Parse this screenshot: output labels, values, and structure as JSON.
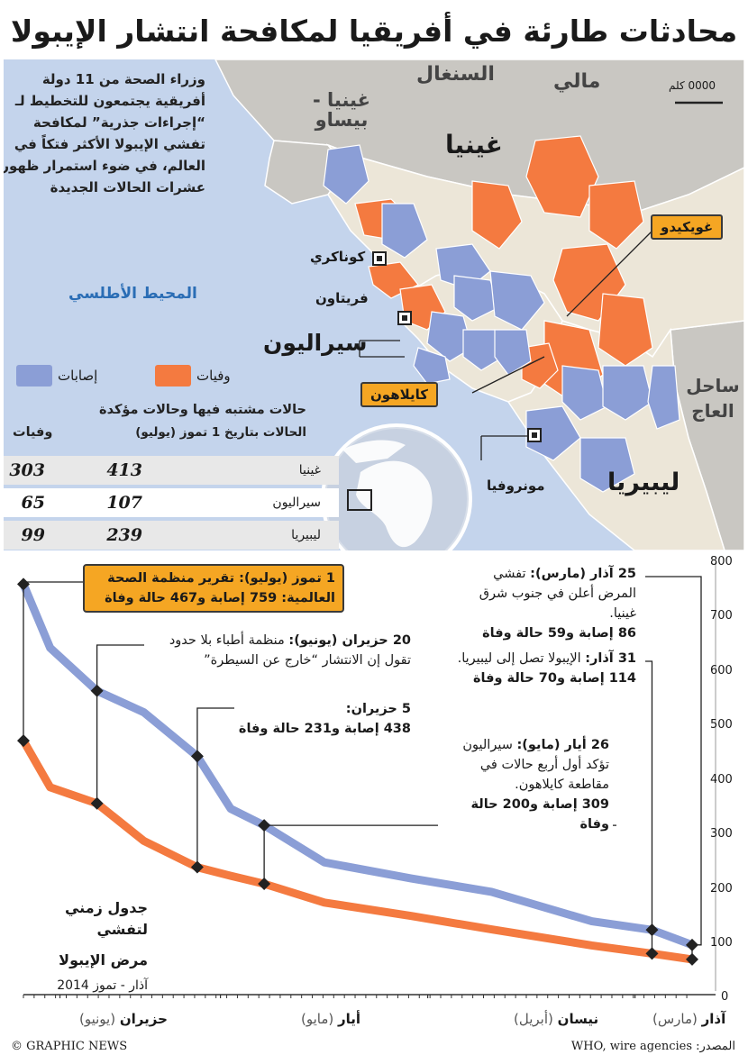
{
  "title": "محادثات طارئة في أفريقيا لمكافحة انتشار الإيبولا",
  "intro": "وزراء الصحة من 11 دولة أفريقية يجتمعون للتخطيط لـ “إجراءات جذرية” لمكافحة تفشي الإيبولا الأكثر فتكاً في العالم، في ضوء استمرار ظهور عشرات الحالات الجديدة",
  "map": {
    "scale": "0000 كلم",
    "labels": {
      "senegal": "السنغال",
      "mali": "مالي",
      "guinea_bissau": "غينيا - بيساو",
      "guinea": "غينيا",
      "conakry": "كوناكري",
      "freetown": "فريتاون",
      "ocean": "المحيط الأطلسي",
      "sierra_leone": "سيراليون",
      "ivory_coast": "ساحل العاج",
      "liberia": "ليبيريا",
      "monrovia": "مونروفيا"
    },
    "callouts": {
      "gueckedou": "غويكيدو",
      "kailahun": "كايلاهون"
    },
    "colors": {
      "water": "#c4d4ec",
      "land": "#ece6d8",
      "neighbor": "#c9c7c2",
      "cases": "#8b9ed6",
      "deaths": "#f47a40"
    }
  },
  "legend": {
    "deaths": "وفيات",
    "cases": "إصابات"
  },
  "table": {
    "title": "حالات مشتبه فيها وحالات مؤكدة",
    "subtitle": "الحالات بتاريخ 1 تموز (يوليو)",
    "deaths_header": "وفيات",
    "rows": [
      {
        "country": "غينيا",
        "cases": "413",
        "deaths": "303"
      },
      {
        "country": "سيراليون",
        "cases": "107",
        "deaths": "65"
      },
      {
        "country": "ليبيريا",
        "cases": "239",
        "deaths": "99"
      }
    ]
  },
  "chart": {
    "title_line1": "جدول زمني لتفشي",
    "title_line2": "مرض الإيبولا",
    "subtitle": "آذار - تموز 2014",
    "yticks": [
      "800",
      "700",
      "600",
      "500",
      "400",
      "300",
      "200",
      "100",
      "0"
    ],
    "months": [
      {
        "name": "آذار",
        "en": "(مارس)"
      },
      {
        "name": "نيسان",
        "en": "(أبريل)"
      },
      {
        "name": "أيار",
        "en": "(مايو)"
      },
      {
        "name": "حزيران",
        "en": "(يونيو)"
      }
    ],
    "annotations": {
      "mar25": {
        "head": "25 آذار (مارس):",
        "body": " تفشي المرض أعلن في جنوب شرق غينيا.",
        "figure": "86 إصابة و59 حالة وفاة"
      },
      "mar31": {
        "head": "31 آذار:",
        "body": " الإيبولا تصل إلى ليبيريا.",
        "figure": "114 إصابة و70 حالة وفاة"
      },
      "may26": {
        "head": "26 أيار (مايو):",
        "body": " سيراليون تؤكد أول أربع حالات في مقاطعة كايلاهون.",
        "figure": "309 إصابة و200 حالة وفاة"
      },
      "jun5": {
        "head": "5 حزيران:",
        "figure": "438 إصابة و231 حالة وفاة"
      },
      "jun20": {
        "head": "20 حزيران (يونيو):",
        "body": " منظمة أطباء بلا حدود تقول إن الانتشار “خارج عن السيطرة”"
      },
      "jul1": {
        "head": "1 تموز (يوليو):",
        "body": " تقرير منظمة الصحة العالمية: 759 إصابة و467 حالة وفاة"
      }
    }
  },
  "chart_data": {
    "type": "line",
    "x_unit": "days before 1 July 2014",
    "ylim": [
      0,
      800
    ],
    "series": [
      {
        "name": "إصابات",
        "points": [
          [
            100,
            86
          ],
          [
            94,
            114
          ],
          [
            85,
            130
          ],
          [
            70,
            185
          ],
          [
            58,
            210
          ],
          [
            45,
            240
          ],
          [
            36,
            309
          ],
          [
            31,
            340
          ],
          [
            26,
            438
          ],
          [
            18,
            520
          ],
          [
            11,
            560
          ],
          [
            4,
            640
          ],
          [
            0,
            759
          ]
        ]
      },
      {
        "name": "وفيات",
        "points": [
          [
            100,
            59
          ],
          [
            94,
            70
          ],
          [
            85,
            85
          ],
          [
            70,
            115
          ],
          [
            58,
            140
          ],
          [
            45,
            165
          ],
          [
            36,
            200
          ],
          [
            31,
            215
          ],
          [
            26,
            231
          ],
          [
            18,
            280
          ],
          [
            11,
            350
          ],
          [
            4,
            380
          ],
          [
            0,
            467
          ]
        ]
      }
    ],
    "markers": [
      {
        "label": "25 آذار",
        "cases": 86,
        "deaths": 59
      },
      {
        "label": "31 آذار",
        "cases": 114,
        "deaths": 70
      },
      {
        "label": "26 أيار",
        "cases": 309,
        "deaths": 200
      },
      {
        "label": "5 حزيران",
        "cases": 438,
        "deaths": 231
      },
      {
        "label": "20 حزيران",
        "cases": 560,
        "deaths": 350
      },
      {
        "label": "1 تموز",
        "cases": 759,
        "deaths": 467
      }
    ]
  },
  "footer": {
    "credit": "© GRAPHIC NEWS",
    "source": "المصدر: WHO, wire agencies"
  }
}
